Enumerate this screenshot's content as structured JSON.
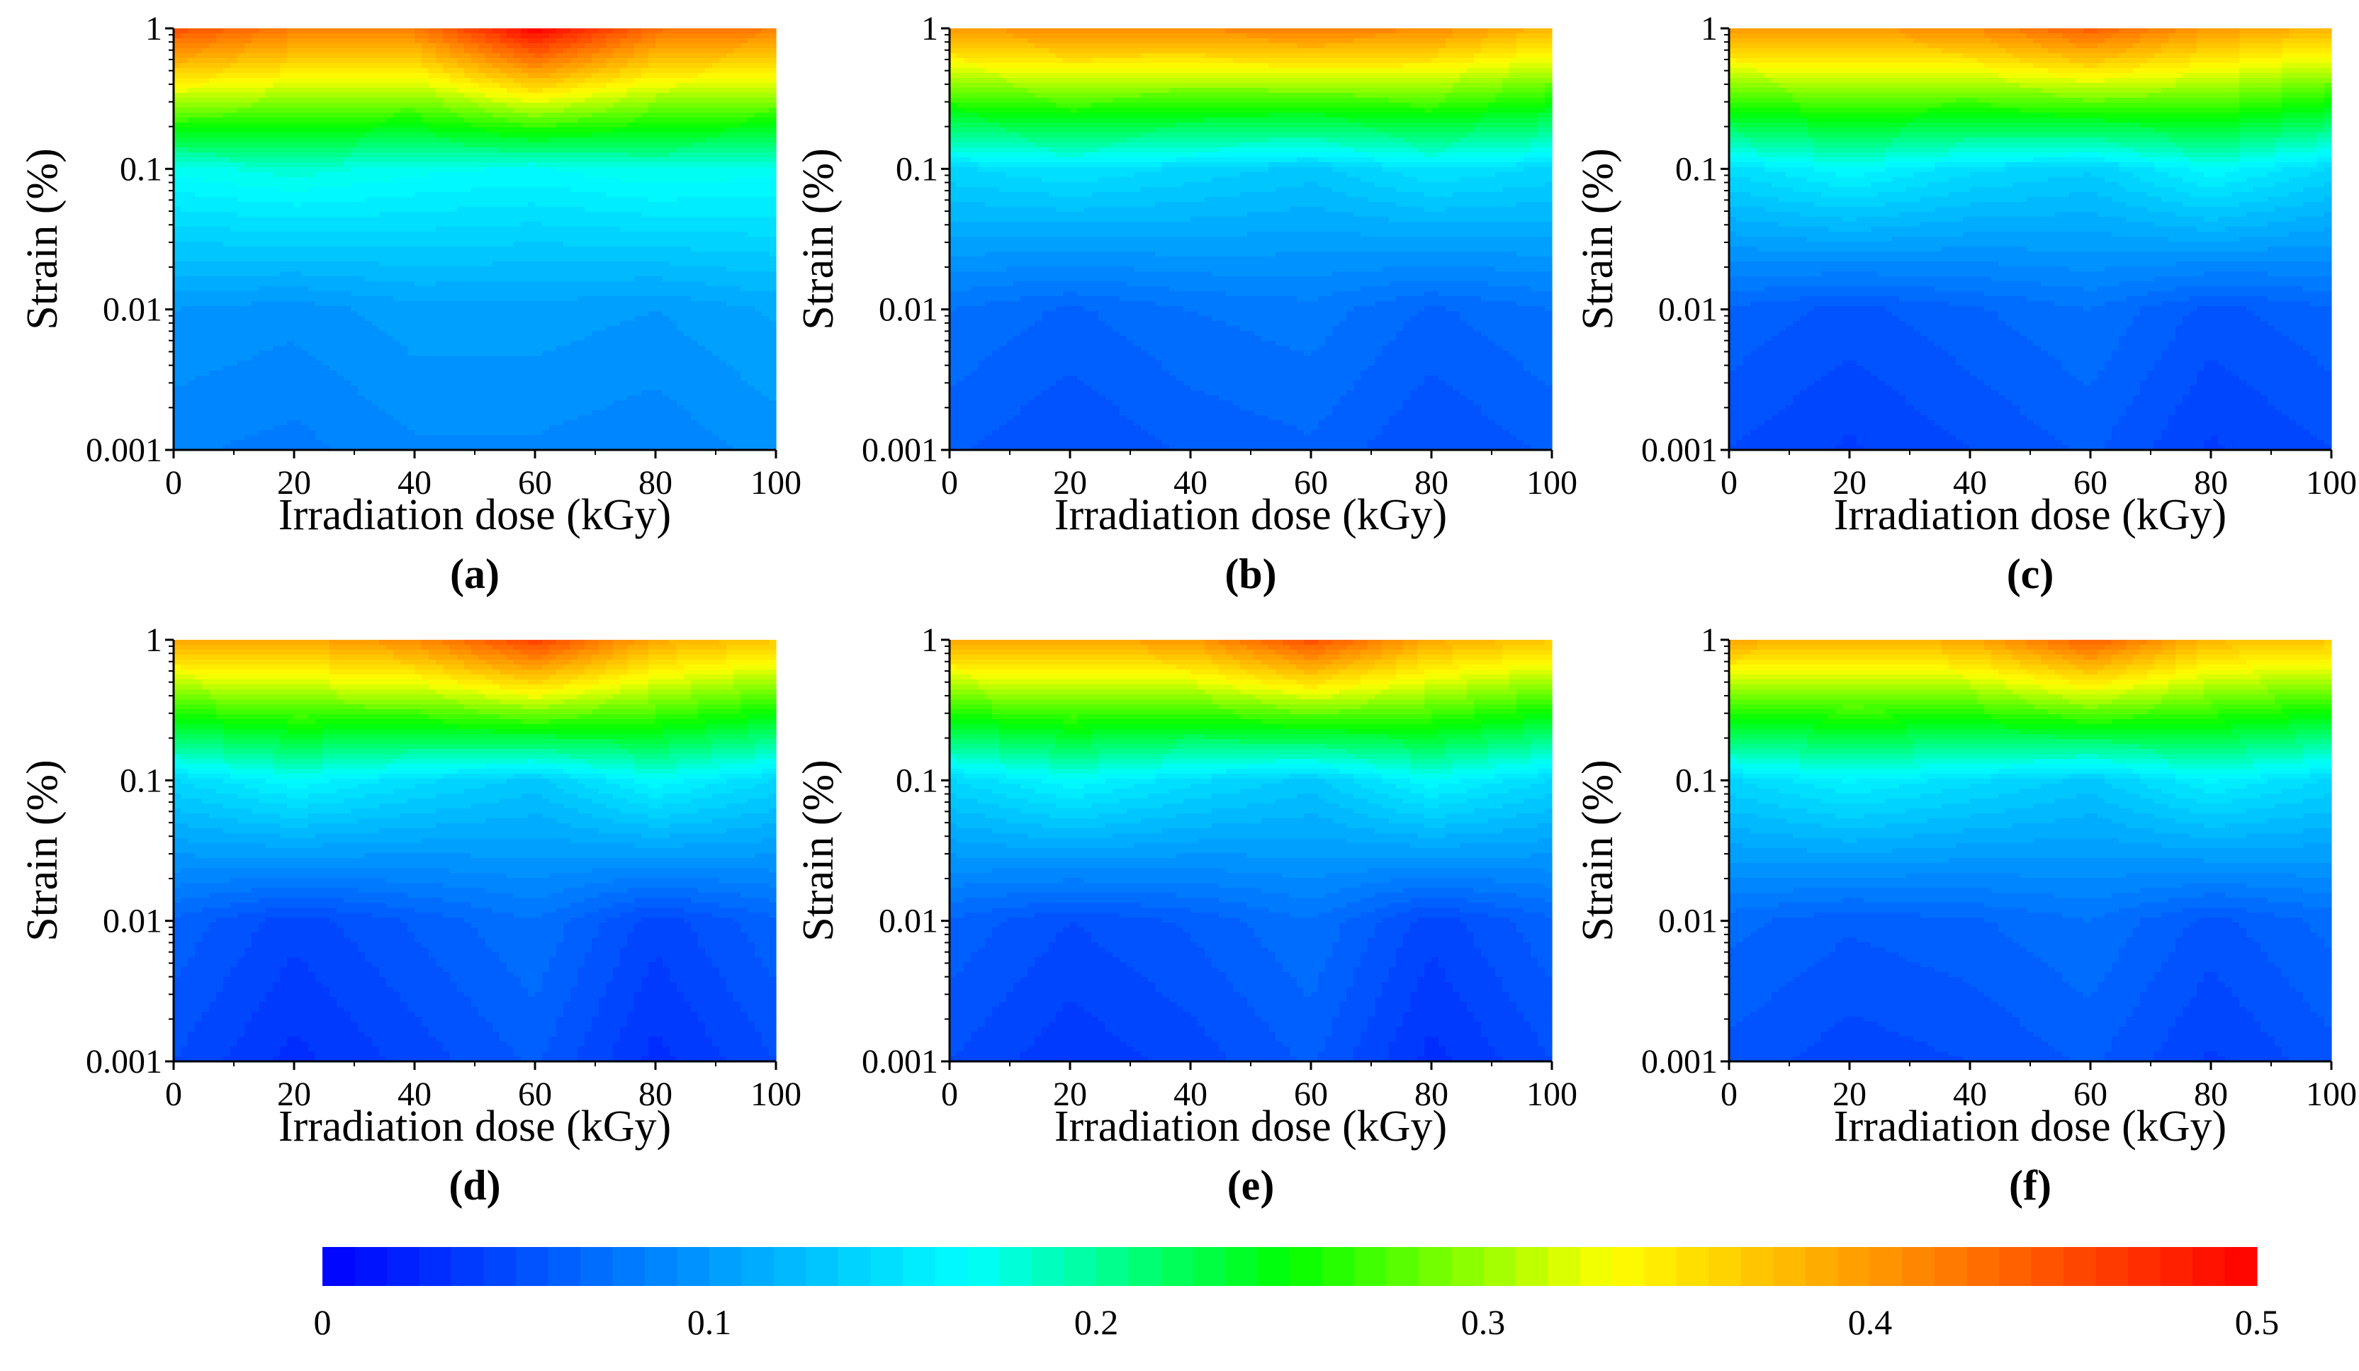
{
  "chart_data": [
    {
      "type": "heatmap",
      "panel_label": "(a)",
      "xlabel": "Irradiation dose (kGy)",
      "ylabel": "Strain (%)",
      "x": [
        0,
        20,
        40,
        60,
        80,
        100
      ],
      "x_ticks": [
        "0",
        "20",
        "40",
        "60",
        "80",
        "100"
      ],
      "xlim": [
        0,
        100
      ],
      "y": [
        0.001,
        0.01,
        0.1,
        1
      ],
      "y_ticks": [
        "0.001",
        "0.01",
        "0.1",
        "1"
      ],
      "ylim": [
        0.001,
        1
      ],
      "yscale": "log",
      "z": [
        [
          0.085,
          0.08,
          0.09,
          0.09,
          0.085,
          0.095
        ],
        [
          0.1,
          0.095,
          0.105,
          0.105,
          0.1,
          0.11
        ],
        [
          0.17,
          0.18,
          0.17,
          0.165,
          0.175,
          0.17
        ],
        [
          0.45,
          0.42,
          0.42,
          0.5,
          0.43,
          0.42
        ]
      ]
    },
    {
      "type": "heatmap",
      "panel_label": "(b)",
      "xlabel": "Irradiation dose (kGy)",
      "ylabel": "Strain (%)",
      "x": [
        0,
        20,
        40,
        60,
        80,
        100
      ],
      "x_ticks": [
        "0",
        "20",
        "40",
        "60",
        "80",
        "100"
      ],
      "xlim": [
        0,
        100
      ],
      "y": [
        0.001,
        0.01,
        0.1,
        1
      ],
      "y_ticks": [
        "0.001",
        "0.01",
        "0.1",
        "1"
      ],
      "ylim": [
        0.001,
        1
      ],
      "yscale": "log",
      "z": [
        [
          0.06,
          0.05,
          0.06,
          0.065,
          0.05,
          0.06
        ],
        [
          0.075,
          0.065,
          0.075,
          0.08,
          0.065,
          0.075
        ],
        [
          0.14,
          0.15,
          0.14,
          0.13,
          0.15,
          0.14
        ],
        [
          0.4,
          0.41,
          0.41,
          0.42,
          0.41,
          0.38
        ]
      ]
    },
    {
      "type": "heatmap",
      "panel_label": "(c)",
      "xlabel": "Irradiation dose (kGy)",
      "ylabel": "Strain (%)",
      "x": [
        0,
        20,
        40,
        60,
        80,
        100
      ],
      "x_ticks": [
        "0",
        "20",
        "40",
        "60",
        "80",
        "100"
      ],
      "xlim": [
        0,
        100
      ],
      "y": [
        0.001,
        0.01,
        0.1,
        1
      ],
      "y_ticks": [
        "0.001",
        "0.01",
        "0.1",
        "1"
      ],
      "ylim": [
        0.001,
        1
      ],
      "yscale": "log",
      "z": [
        [
          0.05,
          0.04,
          0.05,
          0.06,
          0.04,
          0.05
        ],
        [
          0.065,
          0.055,
          0.065,
          0.075,
          0.055,
          0.065
        ],
        [
          0.145,
          0.165,
          0.145,
          0.135,
          0.165,
          0.14
        ],
        [
          0.4,
          0.4,
          0.41,
          0.44,
          0.4,
          0.38
        ]
      ]
    },
    {
      "type": "heatmap",
      "panel_label": "(d)",
      "xlabel": "Irradiation dose (kGy)",
      "ylabel": "Strain (%)",
      "x": [
        0,
        20,
        40,
        60,
        80,
        100
      ],
      "x_ticks": [
        "0",
        "20",
        "40",
        "60",
        "80",
        "100"
      ],
      "xlim": [
        0,
        100
      ],
      "y": [
        0.001,
        0.01,
        0.1,
        1
      ],
      "y_ticks": [
        "0.001",
        "0.01",
        "0.1",
        "1"
      ],
      "ylim": [
        0.001,
        1
      ],
      "yscale": "log",
      "z": [
        [
          0.05,
          0.03,
          0.045,
          0.06,
          0.03,
          0.05
        ],
        [
          0.065,
          0.045,
          0.06,
          0.075,
          0.045,
          0.065
        ],
        [
          0.14,
          0.165,
          0.145,
          0.13,
          0.165,
          0.14
        ],
        [
          0.39,
          0.39,
          0.41,
          0.46,
          0.39,
          0.37
        ]
      ]
    },
    {
      "type": "heatmap",
      "panel_label": "(e)",
      "xlabel": "Irradiation dose (kGy)",
      "ylabel": "Strain (%)",
      "x": [
        0,
        20,
        40,
        60,
        80,
        100
      ],
      "x_ticks": [
        "0",
        "20",
        "40",
        "60",
        "80",
        "100"
      ],
      "xlim": [
        0,
        100
      ],
      "y": [
        0.001,
        0.01,
        0.1,
        1
      ],
      "y_ticks": [
        "0.001",
        "0.01",
        "0.1",
        "1"
      ],
      "ylim": [
        0.001,
        1
      ],
      "yscale": "log",
      "z": [
        [
          0.05,
          0.035,
          0.045,
          0.06,
          0.03,
          0.05
        ],
        [
          0.065,
          0.05,
          0.06,
          0.075,
          0.045,
          0.065
        ],
        [
          0.14,
          0.165,
          0.145,
          0.13,
          0.165,
          0.14
        ],
        [
          0.39,
          0.39,
          0.4,
          0.45,
          0.39,
          0.37
        ]
      ]
    },
    {
      "type": "heatmap",
      "panel_label": "(f)",
      "xlabel": "Irradiation dose (kGy)",
      "ylabel": "Strain (%)",
      "x": [
        0,
        20,
        40,
        60,
        80,
        100
      ],
      "x_ticks": [
        "0",
        "20",
        "40",
        "60",
        "80",
        "100"
      ],
      "xlim": [
        0,
        100
      ],
      "y": [
        0.001,
        0.01,
        0.1,
        1
      ],
      "y_ticks": [
        "0.001",
        "0.01",
        "0.1",
        "1"
      ],
      "ylim": [
        0.001,
        1
      ],
      "yscale": "log",
      "z": [
        [
          0.055,
          0.045,
          0.05,
          0.06,
          0.04,
          0.055
        ],
        [
          0.07,
          0.06,
          0.065,
          0.075,
          0.055,
          0.07
        ],
        [
          0.14,
          0.16,
          0.145,
          0.13,
          0.16,
          0.14
        ],
        [
          0.39,
          0.38,
          0.39,
          0.44,
          0.38,
          0.37
        ]
      ]
    }
  ],
  "colorbar": {
    "range": [
      0,
      0.5
    ],
    "levels": 60,
    "ticks": [
      0,
      0.1,
      0.2,
      0.3,
      0.4,
      0.5
    ],
    "tick_labels": [
      "0",
      "0.1",
      "0.2",
      "0.3",
      "0.4",
      "0.5"
    ],
    "colormap": [
      "#0000ff",
      "#0080ff",
      "#00ffff",
      "#00ff00",
      "#ffff00",
      "#ff8000",
      "#ff0000"
    ]
  }
}
